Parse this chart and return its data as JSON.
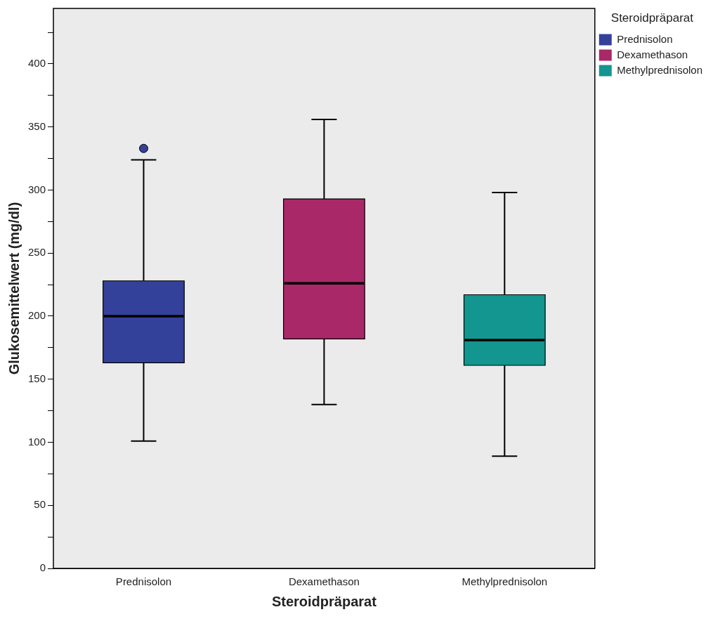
{
  "chart_data": {
    "type": "box",
    "xlabel": "Steroidpräparat",
    "ylabel": "Glukosemittelwert (mg/dl)",
    "legend_title": "Steroidpräparat",
    "categories": [
      "Prednisolon",
      "Dexamethason",
      "Methylprednisolon"
    ],
    "series": [
      {
        "name": "Prednisolon",
        "color": "#33419a",
        "boxes": [
          {
            "low": 101,
            "q1": 163,
            "median": 200,
            "q3": 228,
            "high": 324,
            "outliers": [
              333
            ]
          },
          null,
          null
        ]
      },
      {
        "name": "Dexamethason",
        "color": "#a92868",
        "boxes": [
          null,
          {
            "low": 130,
            "q1": 182,
            "median": 226,
            "q3": 293,
            "high": 356
          },
          null
        ]
      },
      {
        "name": "Methylprednisolon",
        "color": "#13968f",
        "boxes": [
          null,
          null,
          {
            "low": 89,
            "q1": 161,
            "median": 181,
            "q3": 217,
            "high": 298
          }
        ]
      }
    ],
    "ylim": [
      0,
      444
    ],
    "yticks": [
      0,
      {
        "value": 25,
        "label": null
      },
      50,
      {
        "value": 75,
        "label": null
      },
      100,
      {
        "value": 125,
        "label": null
      },
      150,
      {
        "value": 175,
        "label": null
      },
      200,
      {
        "value": 225,
        "label": null
      },
      250,
      {
        "value": 275,
        "label": null
      },
      300,
      {
        "value": 325,
        "label": null
      },
      350,
      {
        "value": 375,
        "label": null
      },
      400,
      {
        "value": 425,
        "label": null
      }
    ],
    "grid": false,
    "legend": "top right"
  }
}
